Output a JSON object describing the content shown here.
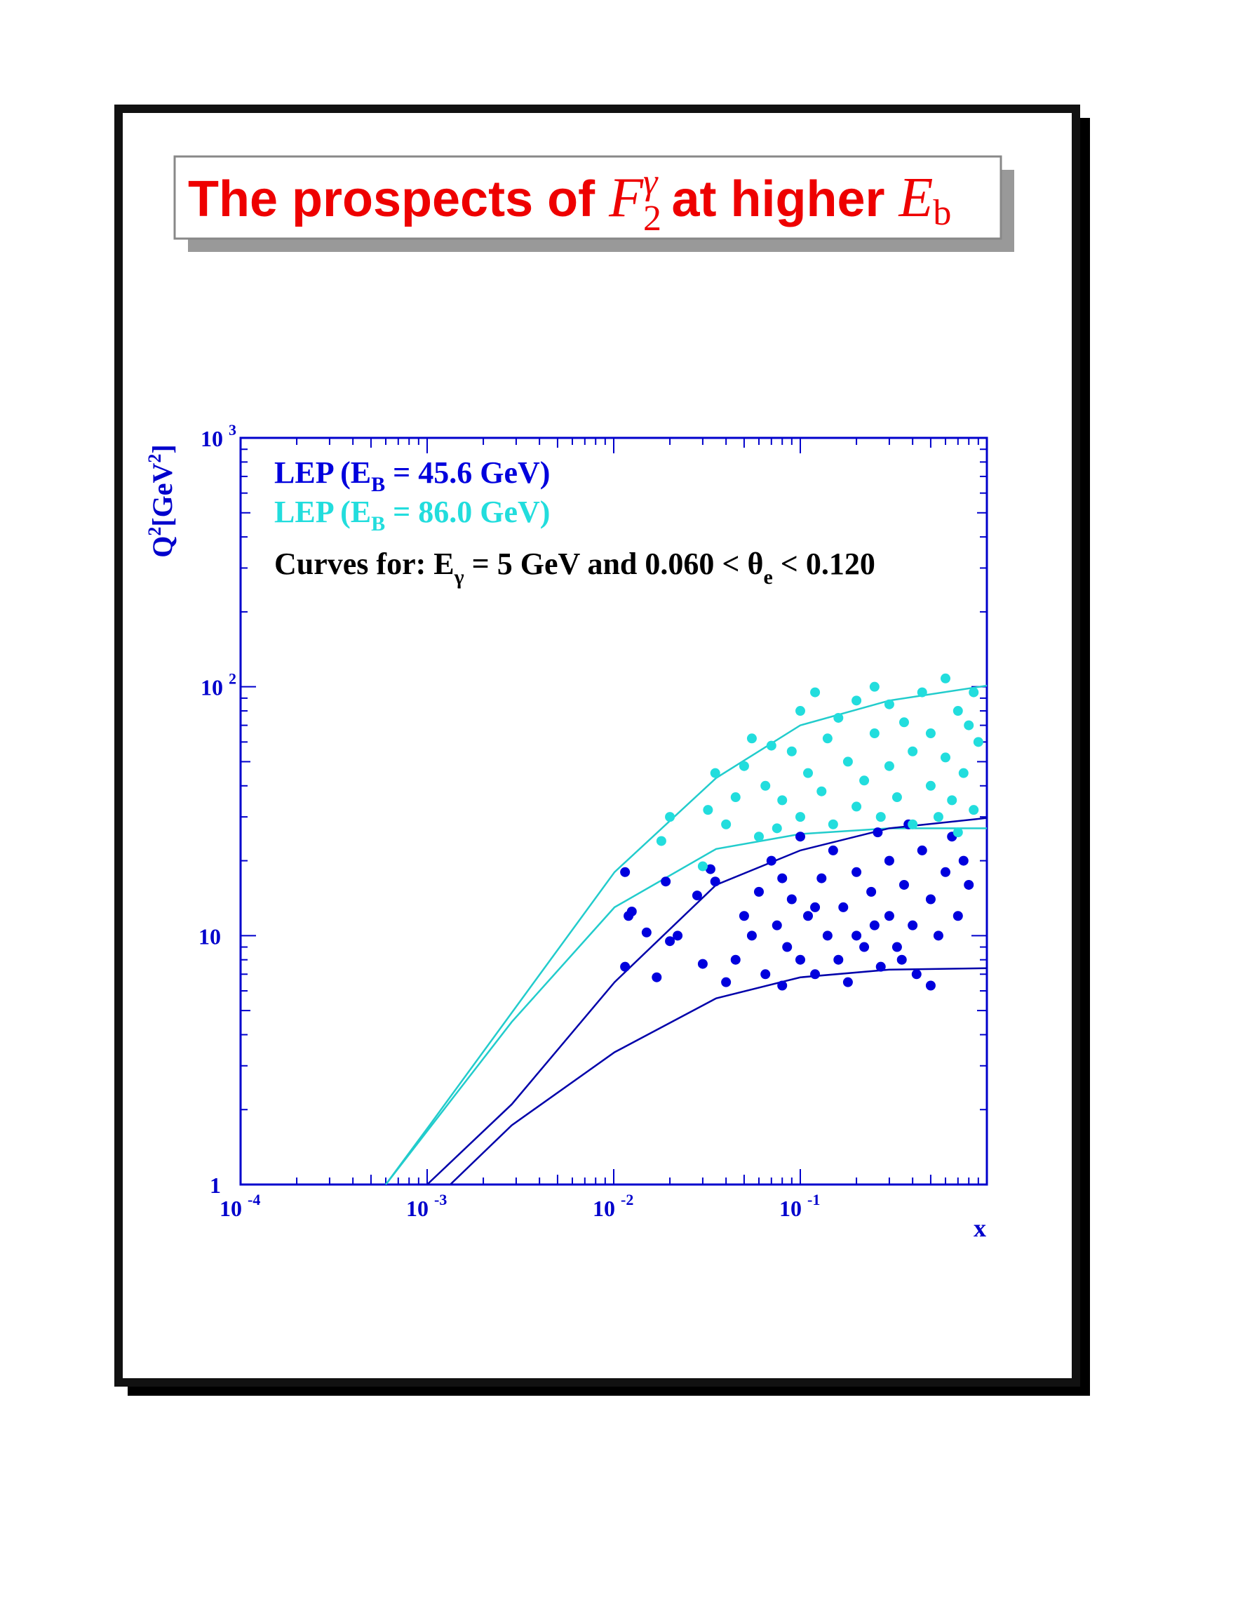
{
  "chart_data": {
    "type": "scatter",
    "title": {
      "text1": "The prospects of ",
      "F": "F",
      "sub": "2",
      "sup": "γ",
      "text2": " at higher ",
      "E": "E",
      "esub": "b"
    },
    "x_label": "x",
    "y_label": {
      "q": "Q",
      "sup1": "2",
      "unit": "[GeV",
      "sup2": "2",
      "close": "]"
    },
    "annotation": {
      "text1": "Curves for: E",
      "sub1": "γ",
      "text2": " = 5 GeV and 0.060 < θ",
      "sub2": "e",
      "text3": " < 0.120"
    },
    "log_x": true,
    "log_y": true,
    "xlim": [
      0.0001,
      1
    ],
    "ylim": [
      1,
      1000
    ],
    "xticks": [
      {
        "value": 0.0001,
        "label": "10",
        "sup": "-4"
      },
      {
        "value": 0.001,
        "label": "10",
        "sup": "-3"
      },
      {
        "value": 0.01,
        "label": "10",
        "sup": "-2"
      },
      {
        "value": 0.1,
        "label": "10",
        "sup": "-1"
      }
    ],
    "yticks": [
      1,
      10,
      {
        "value": 100,
        "label": "10",
        "sup": "2"
      },
      {
        "value": 1000,
        "label": "10",
        "sup": "3"
      }
    ],
    "axis_color": "#0000cc",
    "series": [
      {
        "name": {
          "text1": "LEP (E",
          "sub": "B",
          "text2": " = 45.6 GeV)"
        },
        "color": "#0000dd",
        "x": [
          0.0115,
          0.012,
          0.0125,
          0.0115,
          0.015,
          0.019,
          0.017,
          0.02,
          0.022,
          0.028,
          0.03,
          0.033,
          0.035,
          0.04,
          0.045,
          0.05,
          0.055,
          0.06,
          0.065,
          0.07,
          0.075,
          0.08,
          0.085,
          0.09,
          0.1,
          0.1,
          0.11,
          0.12,
          0.13,
          0.14,
          0.15,
          0.16,
          0.17,
          0.18,
          0.2,
          0.2,
          0.22,
          0.24,
          0.26,
          0.27,
          0.3,
          0.3,
          0.33,
          0.36,
          0.38,
          0.4,
          0.42,
          0.45,
          0.5,
          0.5,
          0.55,
          0.6,
          0.65,
          0.7,
          0.75,
          0.8,
          0.25,
          0.12,
          0.08,
          0.35
        ],
        "values": [
          18,
          12,
          12.5,
          7.5,
          10.3,
          16.5,
          6.8,
          9.5,
          10,
          14.5,
          7.7,
          18.5,
          16.5,
          6.5,
          8,
          12,
          10,
          15,
          7,
          20,
          11,
          6.3,
          9,
          14,
          8,
          25,
          12,
          7,
          17,
          10,
          22,
          8,
          13,
          6.5,
          18,
          10,
          9,
          15,
          26,
          7.5,
          12,
          20,
          9,
          16,
          28,
          11,
          7,
          22,
          6.3,
          14,
          10,
          18,
          25,
          12,
          20,
          16,
          11,
          13,
          17,
          8
        ]
      },
      {
        "name": {
          "text1": "LEP (E",
          "sub": "B",
          "text2": " = 86.0 GeV)"
        },
        "color": "#22dddd",
        "x": [
          0.018,
          0.02,
          0.03,
          0.032,
          0.035,
          0.04,
          0.045,
          0.05,
          0.055,
          0.06,
          0.065,
          0.07,
          0.075,
          0.08,
          0.09,
          0.1,
          0.1,
          0.11,
          0.12,
          0.13,
          0.14,
          0.15,
          0.16,
          0.18,
          0.2,
          0.2,
          0.22,
          0.25,
          0.27,
          0.3,
          0.3,
          0.33,
          0.36,
          0.4,
          0.4,
          0.45,
          0.5,
          0.5,
          0.55,
          0.6,
          0.6,
          0.65,
          0.7,
          0.75,
          0.8,
          0.85,
          0.9,
          0.85,
          0.25,
          0.7
        ],
        "values": [
          24,
          30,
          19,
          32,
          45,
          28,
          36,
          48,
          62,
          25,
          40,
          58,
          27,
          35,
          55,
          80,
          30,
          45,
          95,
          38,
          62,
          28,
          75,
          50,
          33,
          88,
          42,
          65,
          30,
          85,
          48,
          36,
          72,
          55,
          28,
          95,
          40,
          65,
          30,
          108,
          52,
          35,
          80,
          45,
          70,
          32,
          60,
          95,
          100,
          26
        ]
      }
    ],
    "curves": [
      {
        "color": "#22cccc",
        "x": [
          0.0006,
          0.00103,
          0.00284,
          0.0101,
          0.0354,
          0.1,
          0.3,
          1
        ],
        "values": [
          1,
          1.73,
          4.9,
          18,
          43,
          70,
          88,
          101
        ]
      },
      {
        "color": "#22cccc",
        "x": [
          0.0006,
          0.00284,
          0.0101,
          0.0354,
          0.1,
          0.3,
          1
        ],
        "values": [
          1,
          4.5,
          13,
          22.3,
          25.6,
          27,
          27
        ]
      },
      {
        "color": "#0000aa",
        "x": [
          0.001,
          0.00284,
          0.0101,
          0.0354,
          0.1,
          0.3,
          1
        ],
        "values": [
          1,
          2.1,
          6.5,
          16,
          22,
          27,
          29.7
        ]
      },
      {
        "color": "#0000aa",
        "x": [
          0.00133,
          0.00284,
          0.0101,
          0.0354,
          0.1,
          0.3,
          1
        ],
        "values": [
          1,
          1.73,
          3.4,
          5.6,
          6.8,
          7.3,
          7.4
        ]
      }
    ]
  }
}
